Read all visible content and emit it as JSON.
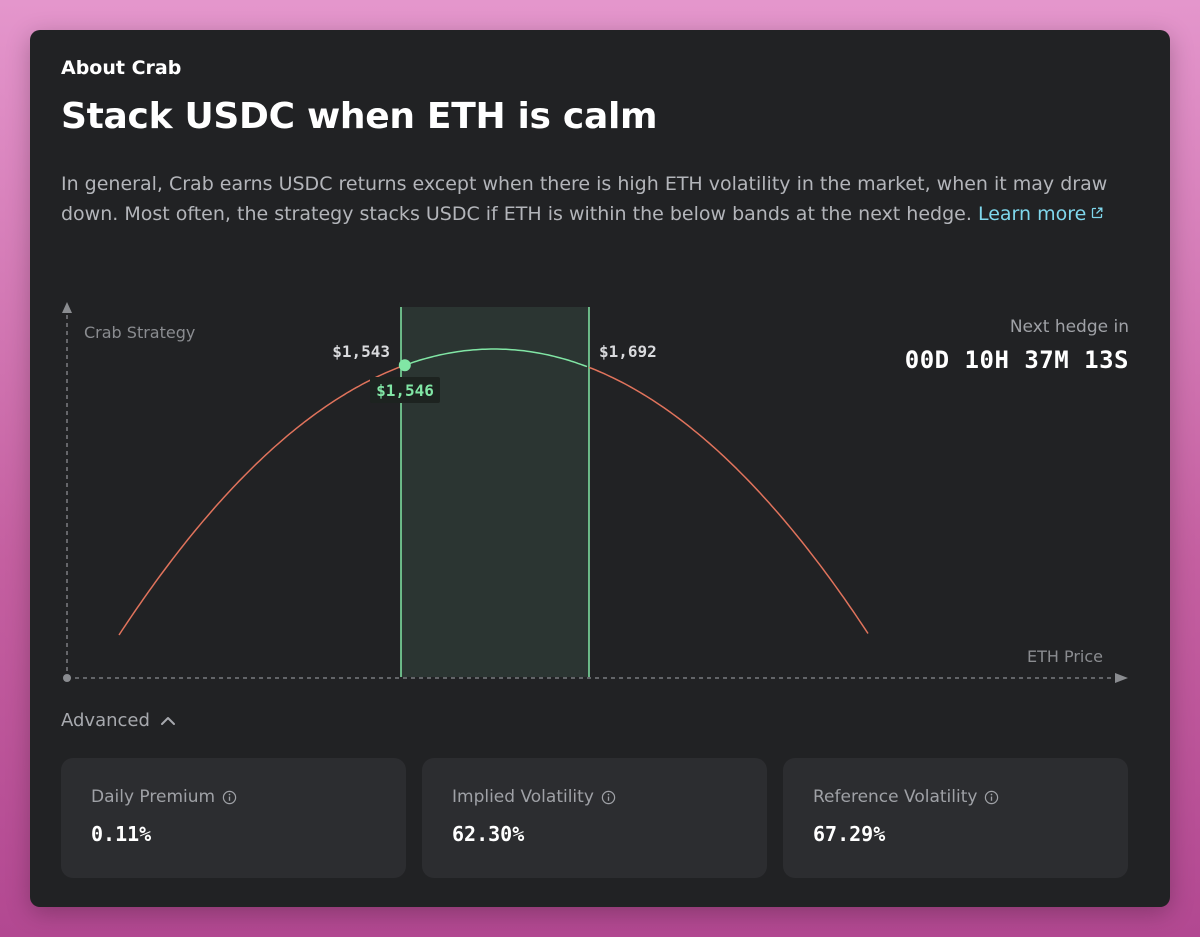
{
  "about": {
    "section_title": "About Crab",
    "headline": "Stack USDC when ETH is calm",
    "description": "In general, Crab earns USDC returns except when there is high ETH volatility in the market, when it may draw down. Most often, the strategy stacks USDC if ETH is within the below bands at the next hedge.",
    "learn_more": "Learn more",
    "learn_more_icon": "external-link-icon"
  },
  "chart_data": {
    "type": "line",
    "ylabel": "Crab Strategy",
    "xlabel": "ETH Price",
    "band": {
      "lower": 1543,
      "upper": 1692,
      "lower_label": "$1,543",
      "upper_label": "$1,692"
    },
    "current": {
      "price": 1546,
      "label": "$1,546"
    },
    "colors": {
      "band_fill": "#2b3532",
      "band_line": "#81e6a5",
      "in_band": "#81e6a5",
      "out_band": "#e0735c",
      "axis": "#8a8c90"
    }
  },
  "hedge": {
    "label": "Next hedge in",
    "countdown": "00D 10H 37M 13S"
  },
  "advanced": {
    "label": "Advanced",
    "icon": "chevron-up-icon"
  },
  "stats": [
    {
      "label": "Daily Premium",
      "value": "0.11%",
      "icon": "info-icon"
    },
    {
      "label": "Implied Volatility",
      "value": "62.30%",
      "icon": "info-icon"
    },
    {
      "label": "Reference Volatility",
      "value": "67.29%",
      "icon": "info-icon"
    }
  ]
}
